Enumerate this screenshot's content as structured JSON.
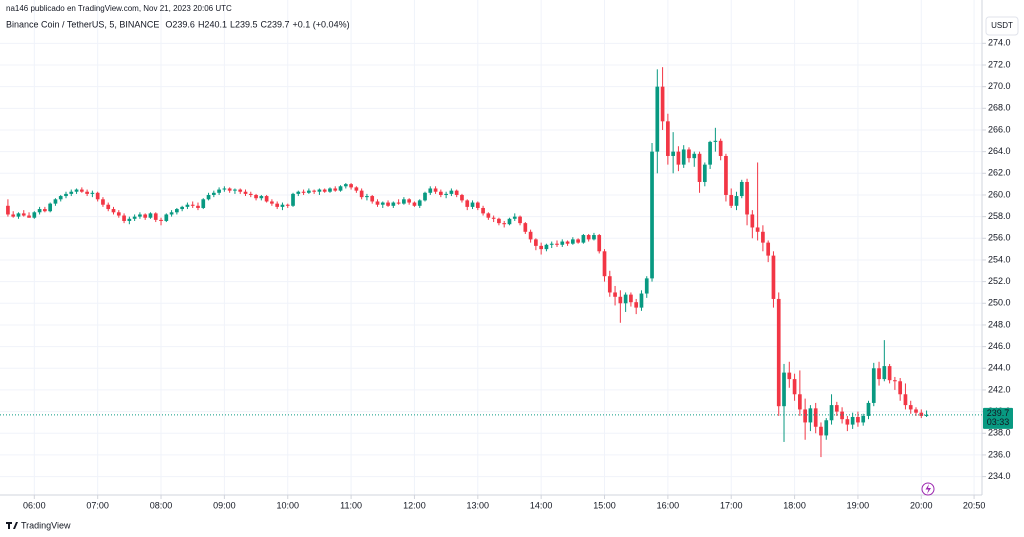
{
  "header": "na146 publicado en TradingView.com, Nov 21, 2023 20:06 UTC",
  "footer": "TradingView",
  "currency": "USDT",
  "chart_data": {
    "type": "candlestick",
    "symbol": "Binance Coin / TetherUS, 5, BINANCE",
    "ohlc_legend": [
      "O239.6",
      "H240.1",
      "L239.5",
      "C239.7",
      "+0.1 (+0.04%)"
    ],
    "last_price": 239.7,
    "last_price_label": "239.7",
    "countdown": "03:33",
    "up_color": "#089981",
    "down_color": "#f23645",
    "grid": true,
    "xlim": [
      -1.5,
      184.5
    ],
    "xticks": [
      {
        "value": 5,
        "label": "06:00"
      },
      {
        "value": 17,
        "label": "07:00"
      },
      {
        "value": 29,
        "label": "08:00"
      },
      {
        "value": 41,
        "label": "09:00"
      },
      {
        "value": 53,
        "label": "10:00"
      },
      {
        "value": 65,
        "label": "11:00"
      },
      {
        "value": 77,
        "label": "12:00"
      },
      {
        "value": 89,
        "label": "13:00"
      },
      {
        "value": 101,
        "label": "14:00"
      },
      {
        "value": 113,
        "label": "15:00"
      },
      {
        "value": 125,
        "label": "16:00"
      },
      {
        "value": 137,
        "label": "17:00"
      },
      {
        "value": 149,
        "label": "18:00"
      },
      {
        "value": 161,
        "label": "19:00"
      },
      {
        "value": 173,
        "label": "20:00"
      },
      {
        "value": 183,
        "label": "20:50"
      }
    ],
    "ylim": [
      232.3,
      278.0
    ],
    "yticks": [
      {
        "value": 234,
        "label": "234.0"
      },
      {
        "value": 236,
        "label": "236.0"
      },
      {
        "value": 238,
        "label": "238.0"
      },
      {
        "value": 240,
        "label": "240.0"
      },
      {
        "value": 242,
        "label": "242.0"
      },
      {
        "value": 244,
        "label": "244.0"
      },
      {
        "value": 246,
        "label": "246.0"
      },
      {
        "value": 248,
        "label": "248.0"
      },
      {
        "value": 250,
        "label": "250.0"
      },
      {
        "value": 252,
        "label": "252.0"
      },
      {
        "value": 254,
        "label": "254.0"
      },
      {
        "value": 256,
        "label": "256.0"
      },
      {
        "value": 258,
        "label": "258.0"
      },
      {
        "value": 260,
        "label": "260.0"
      },
      {
        "value": 262,
        "label": "262.0"
      },
      {
        "value": 264,
        "label": "264.0"
      },
      {
        "value": 266,
        "label": "266.0"
      },
      {
        "value": 268,
        "label": "268.0"
      },
      {
        "value": 270,
        "label": "270.0"
      },
      {
        "value": 272,
        "label": "272.0"
      },
      {
        "value": 274,
        "label": "274.0"
      }
    ],
    "ohlc": [
      [
        259.0,
        259.6,
        258.0,
        258.2
      ],
      [
        258.2,
        258.5,
        257.9,
        258.0
      ],
      [
        258.0,
        258.4,
        257.8,
        258.3
      ],
      [
        258.3,
        258.6,
        258.0,
        258.1
      ],
      [
        258.1,
        258.4,
        257.9,
        257.9
      ],
      [
        257.9,
        258.5,
        257.8,
        258.4
      ],
      [
        258.4,
        258.9,
        258.2,
        258.7
      ],
      [
        258.7,
        258.9,
        258.4,
        258.5
      ],
      [
        258.5,
        259.3,
        258.4,
        259.2
      ],
      [
        259.2,
        259.7,
        259.0,
        259.6
      ],
      [
        259.6,
        260.0,
        259.4,
        259.9
      ],
      [
        259.9,
        260.3,
        259.7,
        260.1
      ],
      [
        260.1,
        260.5,
        259.9,
        260.3
      ],
      [
        260.3,
        260.6,
        260.1,
        260.5
      ],
      [
        260.5,
        260.7,
        260.2,
        260.3
      ],
      [
        260.3,
        260.5,
        259.9,
        260.1
      ],
      [
        260.1,
        260.4,
        259.8,
        260.2
      ],
      [
        260.2,
        260.3,
        259.4,
        259.6
      ],
      [
        259.6,
        259.8,
        258.9,
        259.1
      ],
      [
        259.1,
        259.3,
        258.5,
        258.7
      ],
      [
        258.7,
        258.9,
        258.2,
        258.4
      ],
      [
        258.4,
        258.6,
        257.9,
        258.1
      ],
      [
        258.1,
        258.3,
        257.4,
        257.6
      ],
      [
        257.6,
        258.0,
        257.3,
        257.8
      ],
      [
        257.8,
        258.2,
        257.6,
        258.0
      ],
      [
        258.0,
        258.4,
        257.8,
        258.2
      ],
      [
        258.2,
        258.3,
        257.7,
        257.9
      ],
      [
        257.9,
        258.4,
        257.8,
        258.3
      ],
      [
        258.3,
        258.4,
        257.5,
        257.7
      ],
      [
        257.7,
        257.9,
        257.2,
        257.6
      ],
      [
        257.6,
        258.3,
        257.5,
        258.2
      ],
      [
        258.2,
        258.6,
        258.0,
        258.4
      ],
      [
        258.4,
        258.8,
        258.2,
        258.7
      ],
      [
        258.7,
        259.0,
        258.5,
        258.9
      ],
      [
        258.9,
        259.3,
        258.7,
        259.1
      ],
      [
        259.1,
        259.4,
        258.8,
        259.0
      ],
      [
        259.0,
        259.3,
        258.6,
        258.8
      ],
      [
        258.8,
        259.7,
        258.7,
        259.6
      ],
      [
        259.6,
        260.2,
        259.5,
        260.0
      ],
      [
        260.0,
        260.4,
        259.8,
        260.2
      ],
      [
        260.2,
        260.7,
        260.0,
        260.5
      ],
      [
        260.5,
        260.8,
        260.3,
        260.6
      ],
      [
        260.6,
        260.7,
        260.2,
        260.4
      ],
      [
        260.4,
        260.6,
        260.1,
        260.5
      ],
      [
        260.5,
        260.6,
        260.1,
        260.3
      ],
      [
        260.3,
        260.5,
        259.9,
        260.1
      ],
      [
        260.1,
        260.3,
        259.8,
        260.0
      ],
      [
        260.0,
        260.1,
        259.5,
        259.7
      ],
      [
        259.7,
        260.0,
        259.5,
        259.9
      ],
      [
        259.9,
        260.0,
        259.3,
        259.4
      ],
      [
        259.4,
        259.6,
        259.0,
        259.2
      ],
      [
        259.2,
        259.4,
        258.7,
        258.9
      ],
      [
        258.9,
        259.3,
        258.6,
        259.1
      ],
      [
        259.1,
        259.2,
        258.8,
        259.0
      ],
      [
        259.0,
        260.2,
        258.9,
        260.1
      ],
      [
        260.1,
        260.4,
        259.9,
        260.3
      ],
      [
        260.3,
        260.5,
        260.0,
        260.2
      ],
      [
        260.2,
        260.6,
        260.1,
        260.4
      ],
      [
        260.4,
        260.5,
        260.1,
        260.3
      ],
      [
        260.3,
        260.6,
        260.0,
        260.5
      ],
      [
        260.5,
        260.6,
        260.2,
        260.3
      ],
      [
        260.3,
        260.7,
        260.2,
        260.6
      ],
      [
        260.6,
        260.8,
        260.3,
        260.4
      ],
      [
        260.4,
        260.9,
        260.3,
        260.8
      ],
      [
        260.8,
        261.1,
        260.6,
        261.0
      ],
      [
        261.0,
        261.1,
        260.5,
        260.7
      ],
      [
        260.7,
        260.8,
        260.2,
        260.4
      ],
      [
        260.4,
        260.6,
        259.6,
        259.8
      ],
      [
        259.8,
        260.1,
        259.5,
        259.9
      ],
      [
        259.9,
        260.0,
        259.2,
        259.4
      ],
      [
        259.4,
        259.6,
        258.9,
        259.1
      ],
      [
        259.1,
        259.4,
        258.8,
        259.3
      ],
      [
        259.3,
        259.5,
        258.9,
        259.0
      ],
      [
        259.0,
        259.4,
        258.8,
        259.3
      ],
      [
        259.3,
        259.6,
        259.1,
        259.2
      ],
      [
        259.2,
        259.8,
        259.1,
        259.6
      ],
      [
        259.6,
        259.7,
        259.1,
        259.3
      ],
      [
        259.3,
        259.4,
        258.9,
        259.0
      ],
      [
        259.0,
        259.6,
        258.8,
        259.5
      ],
      [
        259.5,
        260.3,
        259.4,
        260.2
      ],
      [
        260.2,
        260.8,
        260.0,
        260.6
      ],
      [
        260.6,
        260.8,
        260.1,
        260.3
      ],
      [
        260.3,
        260.5,
        259.8,
        260.0
      ],
      [
        260.0,
        260.3,
        259.7,
        260.1
      ],
      [
        260.1,
        260.6,
        259.9,
        260.4
      ],
      [
        260.4,
        260.5,
        259.8,
        260.0
      ],
      [
        260.0,
        260.1,
        259.3,
        259.5
      ],
      [
        259.5,
        259.6,
        258.6,
        258.9
      ],
      [
        258.9,
        259.5,
        258.7,
        259.3
      ],
      [
        259.3,
        259.4,
        258.6,
        258.8
      ],
      [
        258.8,
        259.0,
        258.1,
        258.3
      ],
      [
        258.3,
        258.4,
        257.7,
        257.9
      ],
      [
        257.9,
        258.1,
        257.5,
        257.8
      ],
      [
        257.8,
        257.9,
        257.2,
        257.4
      ],
      [
        257.4,
        257.6,
        257.0,
        257.3
      ],
      [
        257.3,
        257.9,
        257.2,
        257.8
      ],
      [
        257.8,
        258.3,
        257.6,
        258.0
      ],
      [
        258.0,
        258.1,
        257.2,
        257.4
      ],
      [
        257.4,
        257.5,
        256.4,
        256.6
      ],
      [
        256.6,
        256.8,
        255.6,
        255.9
      ],
      [
        255.9,
        256.0,
        254.9,
        255.3
      ],
      [
        255.3,
        255.6,
        254.5,
        255.0
      ],
      [
        255.0,
        255.5,
        254.8,
        255.4
      ],
      [
        255.4,
        255.7,
        255.1,
        255.5
      ],
      [
        255.5,
        255.8,
        255.2,
        255.4
      ],
      [
        255.4,
        255.9,
        255.2,
        255.7
      ],
      [
        255.7,
        255.8,
        255.3,
        255.5
      ],
      [
        255.5,
        256.1,
        255.4,
        255.9
      ],
      [
        255.9,
        256.0,
        255.5,
        255.6
      ],
      [
        255.6,
        256.4,
        255.5,
        256.3
      ],
      [
        256.3,
        256.4,
        255.7,
        255.9
      ],
      [
        255.9,
        256.5,
        255.8,
        256.3
      ],
      [
        256.3,
        256.4,
        254.6,
        254.8
      ],
      [
        254.8,
        255.0,
        252.0,
        252.5
      ],
      [
        252.5,
        253.0,
        250.6,
        251.0
      ],
      [
        251.0,
        251.6,
        249.8,
        250.6
      ],
      [
        250.6,
        251.2,
        248.2,
        250.0
      ],
      [
        250.0,
        251.0,
        249.2,
        250.8
      ],
      [
        250.8,
        251.0,
        249.7,
        250.1
      ],
      [
        250.1,
        250.4,
        249.0,
        249.6
      ],
      [
        249.6,
        251.2,
        249.3,
        250.9
      ],
      [
        250.9,
        252.5,
        250.5,
        252.3
      ],
      [
        252.3,
        264.8,
        252.0,
        264.0
      ],
      [
        264.0,
        271.6,
        262.0,
        270.0
      ],
      [
        270.0,
        271.8,
        266.0,
        266.8
      ],
      [
        266.8,
        267.5,
        262.8,
        263.6
      ],
      [
        263.6,
        265.8,
        262.0,
        264.0
      ],
      [
        264.0,
        264.5,
        262.2,
        262.8
      ],
      [
        262.8,
        264.6,
        262.5,
        264.2
      ],
      [
        264.2,
        264.4,
        263.0,
        263.4
      ],
      [
        263.4,
        264.0,
        262.6,
        263.8
      ],
      [
        263.8,
        264.0,
        260.2,
        261.2
      ],
      [
        261.2,
        263.0,
        260.8,
        262.8
      ],
      [
        262.8,
        265.0,
        262.4,
        264.9
      ],
      [
        264.9,
        266.2,
        264.0,
        265.0
      ],
      [
        265.0,
        265.2,
        263.2,
        263.6
      ],
      [
        263.6,
        263.8,
        259.4,
        260.0
      ],
      [
        260.0,
        260.6,
        258.8,
        259.0
      ],
      [
        259.0,
        260.3,
        258.6,
        259.9
      ],
      [
        259.9,
        261.4,
        259.7,
        261.2
      ],
      [
        261.2,
        261.5,
        257.2,
        258.2
      ],
      [
        258.2,
        258.6,
        256.0,
        257.0
      ],
      [
        257.0,
        263.0,
        255.8,
        256.6
      ],
      [
        256.6,
        257.2,
        254.8,
        255.6
      ],
      [
        255.6,
        255.8,
        253.8,
        254.4
      ],
      [
        254.4,
        254.8,
        249.6,
        250.4
      ],
      [
        250.4,
        251.0,
        239.6,
        240.5
      ],
      [
        240.5,
        244.4,
        237.2,
        243.6
      ],
      [
        243.6,
        244.6,
        242.2,
        243.0
      ],
      [
        243.0,
        243.5,
        241.0,
        241.6
      ],
      [
        241.6,
        243.8,
        239.6,
        240.2
      ],
      [
        240.2,
        241.2,
        237.4,
        239.0
      ],
      [
        239.0,
        240.6,
        238.2,
        240.3
      ],
      [
        240.3,
        240.8,
        238.0,
        238.6
      ],
      [
        238.6,
        239.0,
        235.8,
        237.8
      ],
      [
        237.8,
        239.4,
        237.4,
        239.2
      ],
      [
        239.2,
        241.6,
        238.8,
        240.6
      ],
      [
        240.6,
        240.9,
        239.6,
        240.0
      ],
      [
        240.0,
        240.4,
        238.9,
        239.3
      ],
      [
        239.3,
        239.6,
        238.2,
        238.8
      ],
      [
        238.8,
        239.9,
        238.4,
        239.5
      ],
      [
        239.5,
        240.0,
        238.6,
        239.0
      ],
      [
        239.0,
        239.8,
        238.7,
        239.6
      ],
      [
        239.6,
        241.0,
        239.3,
        240.8
      ],
      [
        240.8,
        244.5,
        240.5,
        244.0
      ],
      [
        244.0,
        244.6,
        242.4,
        243.0
      ],
      [
        243.0,
        246.6,
        242.8,
        244.2
      ],
      [
        244.2,
        244.4,
        242.6,
        242.9
      ],
      [
        242.9,
        243.2,
        242.0,
        242.8
      ],
      [
        242.8,
        243.1,
        241.0,
        241.6
      ],
      [
        241.6,
        242.6,
        240.2,
        240.6
      ],
      [
        240.6,
        241.0,
        239.8,
        240.2
      ],
      [
        240.2,
        240.4,
        239.6,
        239.9
      ],
      [
        239.9,
        240.2,
        239.4,
        239.6
      ],
      [
        239.6,
        240.1,
        239.5,
        239.7
      ]
    ]
  }
}
